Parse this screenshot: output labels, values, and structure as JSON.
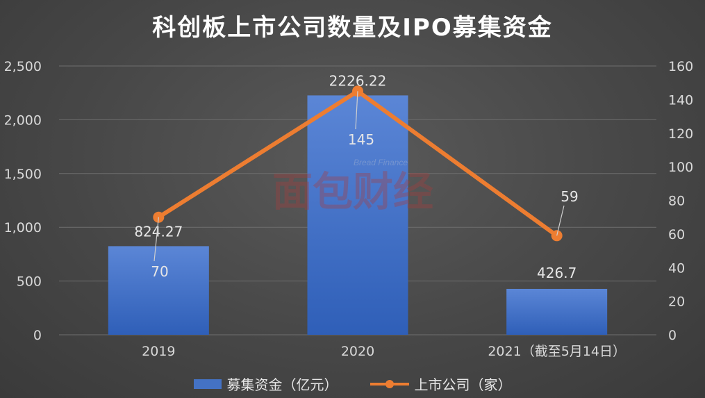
{
  "title": "科创板上市公司数量及IPO募集资金",
  "watermark": {
    "sub": "Bread Finance",
    "main": "面包财经"
  },
  "legend": {
    "bar_label": "募集资金（亿元）",
    "line_label": "上市公司（家）"
  },
  "colors": {
    "bar": "#4472c4",
    "line": "#ed7d31",
    "grid": "#6e6e6e",
    "text": "#d9d9d9"
  },
  "chart_data": {
    "type": "bar",
    "title": "科创板上市公司数量及IPO募集资金",
    "categories": [
      "2019",
      "2020",
      "2021（截至5月14日）"
    ],
    "series": [
      {
        "name": "募集资金（亿元）",
        "type": "bar",
        "axis": "left",
        "values": [
          824.27,
          2226.22,
          426.7
        ],
        "labels": [
          "824.27",
          "2226.22",
          "426.7"
        ]
      },
      {
        "name": "上市公司（家）",
        "type": "line",
        "axis": "right",
        "values": [
          70,
          145,
          59
        ],
        "labels": [
          "70",
          "145",
          "59"
        ]
      }
    ],
    "y_left": {
      "min": 0,
      "max": 2500,
      "ticks": [
        "0",
        "500",
        "1,000",
        "1,500",
        "2,000",
        "2,500"
      ]
    },
    "y_right": {
      "min": 0,
      "max": 160,
      "ticks": [
        "0",
        "20",
        "40",
        "60",
        "80",
        "100",
        "120",
        "140",
        "160"
      ]
    },
    "grid": true,
    "legend_position": "bottom"
  }
}
